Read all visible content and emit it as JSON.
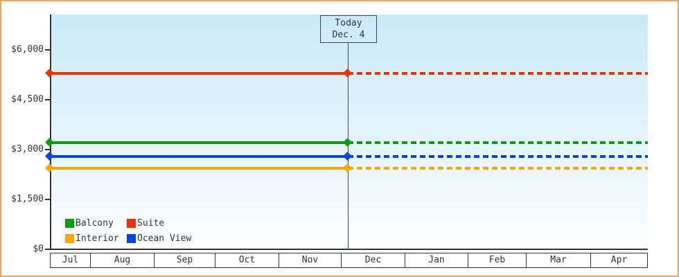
{
  "chart_data": {
    "type": "line",
    "title": "",
    "xlabel": "",
    "ylabel": "",
    "x_categories": [
      "Jul",
      "Aug",
      "Sep",
      "Oct",
      "Nov",
      "Dec",
      "Jan",
      "Feb",
      "Mar",
      "Apr"
    ],
    "y_ticks": [
      {
        "value": 0,
        "label": "$0"
      },
      {
        "value": 1500,
        "label": "$1,500"
      },
      {
        "value": 3000,
        "label": "$3,000"
      },
      {
        "value": 4500,
        "label": "$4,500"
      },
      {
        "value": 6000,
        "label": "$6,000"
      }
    ],
    "ylim": [
      0,
      7060
    ],
    "grid": false,
    "legend_position": "bottom-left-inside",
    "series": [
      {
        "name": "Balcony",
        "color": "#09A009",
        "value": 3200,
        "style": "solid-then-dashed-after-today"
      },
      {
        "name": "Suite",
        "color": "#F03000",
        "value": 5300,
        "style": "solid-then-dashed-after-today"
      },
      {
        "name": "Interior",
        "color": "#FFA500",
        "value": 2430,
        "style": "solid-then-dashed-after-today"
      },
      {
        "name": "Ocean View",
        "color": "#0044EE",
        "value": 2800,
        "style": "solid-then-dashed-after-today"
      }
    ],
    "legend_order": [
      "Balcony",
      "Suite",
      "Interior",
      "Ocean View"
    ],
    "today": {
      "title": "Today",
      "date": "Dec. 4"
    }
  }
}
